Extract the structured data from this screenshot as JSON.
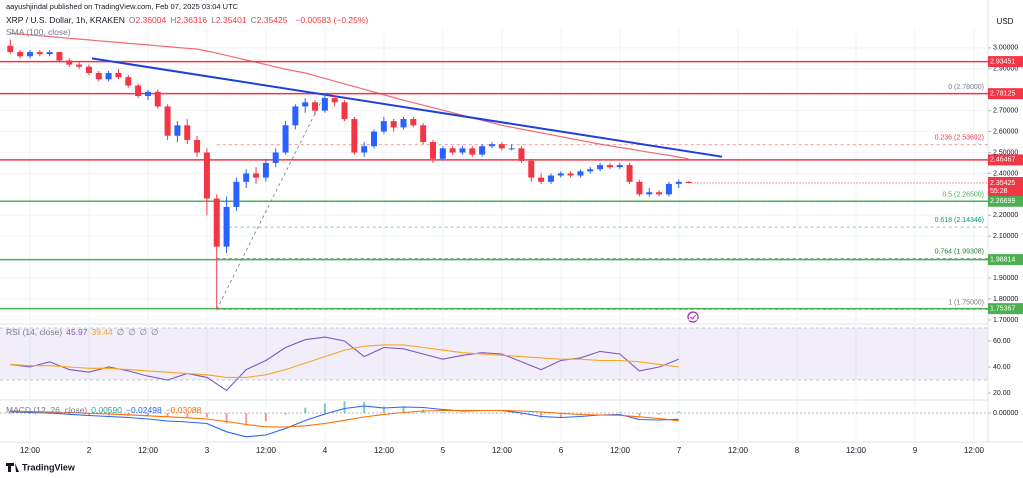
{
  "header": {
    "published": "aayushjindal published on TradingView.com, Feb 07, 2025 03:04 UTC",
    "footer": "TradingView"
  },
  "chart_data": [
    {
      "type": "candlestick",
      "title": "XRP / U.S. Dollar, 1h, KRAKEN",
      "ohlc_legend": [
        {
          "label": "O",
          "value": 2.36004
        },
        {
          "label": "H",
          "value": 2.36316
        },
        {
          "label": "L",
          "value": 2.35401
        },
        {
          "label": "C",
          "value": 2.35425
        }
      ],
      "change": "−0.00583 (−0.25%)",
      "sma_legend": "SMA (100, close)",
      "axis_label": "USD",
      "x_labels": [
        "12:00",
        "2",
        "12:00",
        "3",
        "12:00",
        "4",
        "12:00",
        "5",
        "12:00",
        "6",
        "12:00",
        "7",
        "12:00",
        "8",
        "12:00",
        "9",
        "12:00"
      ],
      "up_color": "#2962ff",
      "down_color": "#f23645",
      "sma_color": "#f23645",
      "ohlc": [
        [
          3.01,
          3.04,
          2.97,
          2.98
        ],
        [
          2.98,
          2.99,
          2.95,
          2.96
        ],
        [
          2.96,
          2.99,
          2.95,
          2.98
        ],
        [
          2.98,
          2.99,
          2.96,
          2.97
        ],
        [
          2.97,
          2.99,
          2.96,
          2.98
        ],
        [
          2.98,
          2.98,
          2.93,
          2.94
        ],
        [
          2.94,
          2.95,
          2.91,
          2.92
        ],
        [
          2.92,
          2.93,
          2.9,
          2.91
        ],
        [
          2.91,
          2.92,
          2.87,
          2.88
        ],
        [
          2.88,
          2.89,
          2.84,
          2.85
        ],
        [
          2.85,
          2.89,
          2.84,
          2.88
        ],
        [
          2.88,
          2.9,
          2.85,
          2.86
        ],
        [
          2.86,
          2.87,
          2.81,
          2.82
        ],
        [
          2.82,
          2.83,
          2.76,
          2.77
        ],
        [
          2.77,
          2.8,
          2.75,
          2.79
        ],
        [
          2.79,
          2.8,
          2.71,
          2.72
        ],
        [
          2.72,
          2.73,
          2.56,
          2.58
        ],
        [
          2.58,
          2.65,
          2.55,
          2.63
        ],
        [
          2.63,
          2.66,
          2.54,
          2.56
        ],
        [
          2.56,
          2.58,
          2.48,
          2.5
        ],
        [
          2.5,
          2.52,
          2.2,
          2.28
        ],
        [
          2.28,
          2.3,
          1.75,
          2.05
        ],
        [
          2.05,
          2.29,
          2.02,
          2.24
        ],
        [
          2.24,
          2.38,
          2.22,
          2.36
        ],
        [
          2.36,
          2.42,
          2.33,
          2.4
        ],
        [
          2.4,
          2.43,
          2.35,
          2.38
        ],
        [
          2.38,
          2.47,
          2.36,
          2.45
        ],
        [
          2.45,
          2.52,
          2.43,
          2.5
        ],
        [
          2.5,
          2.65,
          2.49,
          2.63
        ],
        [
          2.63,
          2.73,
          2.61,
          2.72
        ],
        [
          2.72,
          2.76,
          2.69,
          2.74
        ],
        [
          2.74,
          2.75,
          2.68,
          2.7
        ],
        [
          2.7,
          2.78,
          2.69,
          2.76
        ],
        [
          2.76,
          2.77,
          2.72,
          2.74
        ],
        [
          2.74,
          2.75,
          2.65,
          2.66
        ],
        [
          2.66,
          2.67,
          2.49,
          2.5
        ],
        [
          2.5,
          2.55,
          2.48,
          2.53
        ],
        [
          2.53,
          2.61,
          2.52,
          2.6
        ],
        [
          2.6,
          2.67,
          2.59,
          2.65
        ],
        [
          2.65,
          2.66,
          2.6,
          2.62
        ],
        [
          2.62,
          2.67,
          2.61,
          2.66
        ],
        [
          2.66,
          2.67,
          2.62,
          2.63
        ],
        [
          2.63,
          2.64,
          2.54,
          2.55
        ],
        [
          2.55,
          2.56,
          2.45,
          2.47
        ],
        [
          2.47,
          2.53,
          2.46,
          2.52
        ],
        [
          2.52,
          2.53,
          2.49,
          2.5
        ],
        [
          2.5,
          2.53,
          2.49,
          2.52
        ],
        [
          2.52,
          2.53,
          2.48,
          2.49
        ],
        [
          2.49,
          2.54,
          2.48,
          2.53
        ],
        [
          2.53,
          2.55,
          2.52,
          2.54
        ],
        [
          2.54,
          2.55,
          2.51,
          2.52
        ],
        [
          2.52,
          2.54,
          2.51,
          2.52
        ],
        [
          2.52,
          2.53,
          2.45,
          2.46
        ],
        [
          2.46,
          2.47,
          2.36,
          2.38
        ],
        [
          2.38,
          2.4,
          2.35,
          2.36
        ],
        [
          2.36,
          2.4,
          2.35,
          2.39
        ],
        [
          2.39,
          2.41,
          2.38,
          2.4
        ],
        [
          2.4,
          2.41,
          2.38,
          2.39
        ],
        [
          2.39,
          2.42,
          2.38,
          2.41
        ],
        [
          2.41,
          2.43,
          2.4,
          2.42
        ],
        [
          2.42,
          2.45,
          2.41,
          2.44
        ],
        [
          2.44,
          2.45,
          2.42,
          2.43
        ],
        [
          2.43,
          2.45,
          2.42,
          2.44
        ],
        [
          2.44,
          2.45,
          2.35,
          2.36
        ],
        [
          2.36,
          2.37,
          2.29,
          2.3
        ],
        [
          2.3,
          2.33,
          2.29,
          2.31
        ],
        [
          2.31,
          2.32,
          2.29,
          2.3
        ],
        [
          2.3,
          2.36,
          2.29,
          2.35
        ],
        [
          2.35,
          2.37,
          2.33,
          2.36
        ],
        [
          2.36004,
          2.36316,
          2.35401,
          2.35425
        ]
      ],
      "sma": [
        3.07,
        3.066,
        3.062,
        3.058,
        3.054,
        3.05,
        3.046,
        3.042,
        3.038,
        3.034,
        3.03,
        3.026,
        3.022,
        3.018,
        3.014,
        3.01,
        3.006,
        3.002,
        2.998,
        2.994,
        2.985,
        2.975,
        2.964,
        2.953,
        2.942,
        2.931,
        2.92,
        2.909,
        2.898,
        2.889,
        2.88,
        2.867,
        2.854,
        2.841,
        2.828,
        2.815,
        2.802,
        2.789,
        2.776,
        2.763,
        2.75,
        2.738,
        2.726,
        2.714,
        2.702,
        2.69,
        2.678,
        2.666,
        2.654,
        2.642,
        2.63,
        2.621,
        2.612,
        2.603,
        2.594,
        2.585,
        2.576,
        2.567,
        2.558,
        2.549,
        2.54,
        2.532,
        2.524,
        2.517,
        2.509,
        2.501,
        2.494,
        2.486,
        2.478,
        2.47
      ],
      "ylim": [
        1.69,
        3.095
      ],
      "yticks": [
        {
          "value": 3,
          "label": "3.00000"
        },
        {
          "value": 2.9,
          "label": "2.90000"
        },
        {
          "value": 2.7,
          "label": "2.70000"
        },
        {
          "value": 2.6,
          "label": "2.60000"
        },
        {
          "value": 2.5,
          "label": "2.50000"
        },
        {
          "value": 2.4,
          "label": "2.40000"
        },
        {
          "value": 2.2,
          "label": "2.20000"
        },
        {
          "value": 2.1,
          "label": "2.10000"
        },
        {
          "value": 1.9,
          "label": "1.90000"
        },
        {
          "value": 1.8,
          "label": "1.80000"
        },
        {
          "value": 1.7,
          "label": "1.70000"
        }
      ],
      "grid": true,
      "levels": [
        {
          "value": 2.93451,
          "color": "#f23645"
        },
        {
          "value": 2.78125,
          "color": "#f23645"
        },
        {
          "value": 2.46467,
          "color": "#f23645"
        },
        {
          "value": 2.26699,
          "color": "#4caf50"
        },
        {
          "value": 1.98814,
          "color": "#4caf50"
        },
        {
          "value": 1.75367,
          "color": "#4caf50"
        }
      ],
      "fib": [
        {
          "value": 2.78,
          "label": "0 (2.78000)",
          "color": "#787b86"
        },
        {
          "value": 2.53692,
          "label": "0.236 (2.53692)",
          "color": "#f23645"
        },
        {
          "value": 2.265,
          "label": "0.5 (2.26500)",
          "color": "#4caf50"
        },
        {
          "value": 2.14346,
          "label": "0.618 (2.14346)",
          "color": "#089981"
        },
        {
          "value": 1.99308,
          "label": "0.764 (1.99308)",
          "color": "#2e7d32"
        },
        {
          "value": 1.75,
          "label": "1 (1.75000)",
          "color": "#787b86"
        }
      ],
      "trendline": [
        2.95,
        2.48
      ],
      "trendline_color": "#1e3fd8",
      "last_price": {
        "value": 2.35425,
        "countdown": "55:28",
        "color": "#f23645"
      }
    },
    {
      "type": "line",
      "title": "RSI (14, close)",
      "legend_values": [
        "45.97",
        "39.44",
        "∅",
        "∅",
        "∅",
        "∅"
      ],
      "legend_colors": [
        "#7e57c2",
        "#f5a623",
        "#787b86",
        "#787b86",
        "#787b86",
        "#787b86"
      ],
      "series": [
        {
          "color": "#7e57c2",
          "values": [
            42,
            40,
            44,
            38,
            36,
            40,
            37,
            33,
            30,
            35,
            32,
            22,
            38,
            45,
            55,
            61,
            63,
            60,
            48,
            55,
            54,
            50,
            46,
            49,
            51,
            50,
            44,
            38,
            45,
            47,
            52,
            50,
            37,
            40,
            46
          ]
        },
        {
          "color": "#f5a623",
          "values": [
            42,
            41,
            41,
            40,
            39,
            39,
            38,
            37,
            36,
            35,
            34,
            32,
            32,
            34,
            38,
            43,
            48,
            53,
            56,
            57,
            57,
            55,
            53,
            51,
            50,
            49,
            48,
            47,
            46,
            46,
            45,
            45,
            44,
            42,
            40
          ]
        }
      ],
      "band": [
        30,
        70
      ],
      "band_color": "#7e57c2",
      "ylim": [
        14.6,
        73.1
      ],
      "yticks": [
        {
          "value": 60,
          "label": "60.00"
        },
        {
          "value": 40,
          "label": "40.00"
        },
        {
          "value": 20,
          "label": "20.00"
        }
      ]
    },
    {
      "type": "macd",
      "title": "MACD (12, 26, close)",
      "legend_values": [
        "0.00590",
        "−0.02498",
        "−0.03088"
      ],
      "legend_colors": [
        "#26a69a",
        "#2962ff",
        "#ff6d00"
      ],
      "histogram": {
        "up_color": "#26a69a",
        "down_color": "#ff5252",
        "values": [
          -0.003,
          -0.004,
          -0.004,
          -0.007,
          -0.009,
          -0.01,
          -0.011,
          -0.013,
          -0.017,
          -0.017,
          -0.018,
          -0.041,
          -0.049,
          -0.033,
          -0.006,
          0.021,
          0.038,
          0.047,
          0.044,
          0.026,
          0.022,
          0.014,
          0.004,
          -0.002,
          0,
          0,
          -0.008,
          -0.018,
          -0.017,
          -0.008,
          0,
          0.003,
          -0.011,
          -0.006,
          0.006
        ]
      },
      "series": [
        {
          "color": "#2962ff",
          "values": [
            0.005,
            0.002,
            0,
            -0.005,
            -0.01,
            -0.014,
            -0.018,
            -0.024,
            -0.032,
            -0.036,
            -0.042,
            -0.075,
            -0.095,
            -0.088,
            -0.062,
            -0.03,
            -0.004,
            0.018,
            0.028,
            0.02,
            0.024,
            0.022,
            0.014,
            0.008,
            0.01,
            0.01,
            0,
            -0.014,
            -0.018,
            -0.014,
            -0.008,
            -0.006,
            -0.026,
            -0.028,
            -0.025
          ]
        },
        {
          "color": "#ff6d00",
          "values": [
            0.008,
            0.006,
            0.004,
            0.002,
            -0.001,
            -0.004,
            -0.007,
            -0.011,
            -0.015,
            -0.019,
            -0.024,
            -0.034,
            -0.046,
            -0.055,
            -0.056,
            -0.051,
            -0.042,
            -0.029,
            -0.016,
            -0.006,
            0.002,
            0.008,
            0.01,
            0.01,
            0.01,
            0.01,
            0.008,
            0.004,
            -0.001,
            -0.006,
            -0.008,
            -0.009,
            -0.015,
            -0.022,
            -0.031
          ]
        }
      ],
      "ylim": [
        -0.116,
        0.044
      ],
      "yticks": [
        {
          "value": 0,
          "label": "0.00000"
        }
      ]
    }
  ]
}
